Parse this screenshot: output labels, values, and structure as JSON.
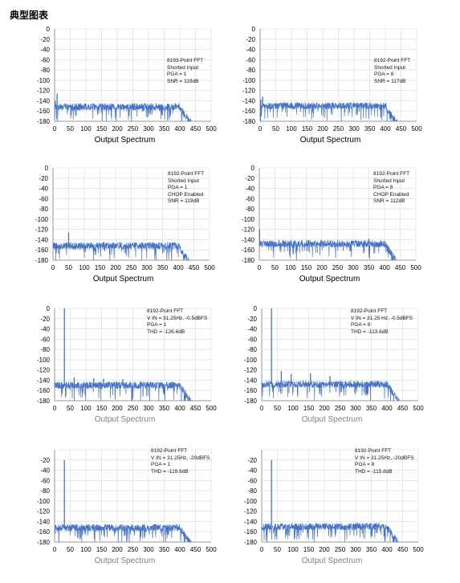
{
  "page": {
    "title": "典型图表"
  },
  "style": {
    "series_color": "#4472C4",
    "grid_color": "#d9d9d9",
    "axis_color": "#7f7f7f",
    "gray_label_color": "#7f7f7f"
  },
  "chart_data": [
    {
      "type": "line",
      "xlabel": "Output Spectrum",
      "xticks": [
        0,
        50,
        100,
        150,
        200,
        250,
        300,
        350,
        400,
        450,
        500
      ],
      "yticks": [
        0,
        -20,
        -40,
        -60,
        -80,
        -100,
        -120,
        -140,
        -160,
        -180
      ],
      "xlim": [
        0,
        500
      ],
      "ylim": [
        -180,
        0
      ],
      "annotations": [
        "8193-Point FFT",
        "Shorted Input",
        "PGA = 1",
        "SNR = 119dB"
      ],
      "series": [
        {
          "noise_floor": -152,
          "rolloff_start": 400,
          "x_end": 450,
          "peaks": [
            {
              "x": 2,
              "y": -140
            },
            {
              "x": 8,
              "y": -126
            }
          ]
        }
      ]
    },
    {
      "type": "line",
      "xlabel": "Output Spectrum",
      "xticks": [
        0,
        50,
        100,
        150,
        200,
        250,
        300,
        350,
        400,
        450,
        500
      ],
      "yticks": [
        0,
        -20,
        -40,
        -60,
        -80,
        -100,
        -120,
        -140,
        -160,
        -180
      ],
      "xlim": [
        0,
        500
      ],
      "ylim": [
        -180,
        0
      ],
      "annotations": [
        "8192-Point FFT",
        "Shorted Input",
        "PGA = 8",
        "SNR = 117dB"
      ],
      "series": [
        {
          "noise_floor": -150,
          "rolloff_start": 400,
          "x_end": 450,
          "peaks": [
            {
              "x": 2,
              "y": -138
            },
            {
              "x": 8,
              "y": -132
            }
          ]
        }
      ]
    },
    {
      "type": "line",
      "xlabel": "Output Spectrum",
      "xticks": [
        0,
        50,
        100,
        150,
        200,
        250,
        300,
        350,
        400,
        450,
        500
      ],
      "yticks": [
        0,
        -20,
        -40,
        -60,
        -80,
        -100,
        -120,
        -140,
        -160,
        -180
      ],
      "xlim": [
        0,
        500
      ],
      "ylim": [
        -180,
        0
      ],
      "annotations": [
        "8192-Point FFT",
        "Shorted Input",
        "PGA = 1",
        "CHOP Enabled",
        "SNR = 119dB"
      ],
      "series": [
        {
          "noise_floor": -152,
          "rolloff_start": 400,
          "x_end": 450,
          "peaks": [
            {
              "x": 50,
              "y": -126
            }
          ]
        }
      ]
    },
    {
      "type": "line",
      "xlabel": "Output Spectrum",
      "xticks": [
        0,
        50,
        100,
        150,
        200,
        250,
        300,
        350,
        400,
        450,
        500
      ],
      "yticks": [
        0,
        -20,
        -40,
        -60,
        -80,
        -100,
        -120,
        -140,
        -160,
        -180
      ],
      "xlim": [
        0,
        500
      ],
      "ylim": [
        -180,
        0
      ],
      "annotations": [
        "8192-Point FFT",
        "Shorted Input",
        "PGA = 8",
        "CHOP Enabled",
        "SNR = 112dB"
      ],
      "series": [
        {
          "noise_floor": -148,
          "rolloff_start": 400,
          "x_end": 450,
          "peaks": [
            {
              "x": 1,
              "y": -120
            },
            {
              "x": 350,
              "y": -138
            }
          ]
        }
      ]
    },
    {
      "type": "line",
      "xlabel": "Output Spectrum",
      "xticks": [
        0,
        50,
        100,
        150,
        200,
        250,
        300,
        350,
        400,
        450,
        500
      ],
      "yticks": [
        0,
        -20,
        -40,
        -60,
        -80,
        -100,
        -120,
        -140,
        -160,
        -180
      ],
      "xlim": [
        0,
        500
      ],
      "ylim": [
        -180,
        0
      ],
      "annotations": [
        "8192-Point FFT",
        "V IN = 31.25Hz, -0.5dBFS",
        "PGA = 1",
        "THD = -126.6dB"
      ],
      "series": [
        {
          "noise_floor": -150,
          "rolloff_start": 400,
          "x_end": 450,
          "peaks": [
            {
              "x": 31.25,
              "y": 0
            },
            {
              "x": 62.5,
              "y": -135
            },
            {
              "x": 125,
              "y": -136
            },
            {
              "x": 156,
              "y": -137
            },
            {
              "x": 218,
              "y": -138
            }
          ]
        }
      ]
    },
    {
      "type": "line",
      "xlabel": "Output Spectrum",
      "xticks": [
        0,
        50,
        100,
        150,
        200,
        250,
        300,
        350,
        400,
        450,
        500
      ],
      "yticks": [
        0,
        -20,
        -40,
        -60,
        -80,
        -100,
        -120,
        -140,
        -160,
        -180
      ],
      "xlim": [
        0,
        500
      ],
      "ylim": [
        -180,
        0
      ],
      "annotations": [
        "8192-Point FFT",
        "V IN = 31.25 Hz, -0.5dBFS",
        "PGA = 8",
        "THD = -113.6dB"
      ],
      "series": [
        {
          "noise_floor": -148,
          "rolloff_start": 400,
          "x_end": 450,
          "peaks": [
            {
              "x": 31.25,
              "y": 0
            },
            {
              "x": 62.5,
              "y": -122
            },
            {
              "x": 94,
              "y": -128
            },
            {
              "x": 156,
              "y": -127
            },
            {
              "x": 218,
              "y": -132
            }
          ]
        }
      ]
    },
    {
      "type": "line",
      "xlabel": "Output Spectrum",
      "xticks": [
        0,
        50,
        100,
        150,
        200,
        250,
        300,
        350,
        400,
        450,
        500
      ],
      "yticks": [
        -20,
        -40,
        -60,
        -80,
        -100,
        -120,
        -140,
        -160,
        -180
      ],
      "xlim": [
        0,
        500
      ],
      "ylim": [
        -180,
        0
      ],
      "annotations": [
        "8192-Point FFT",
        "V IN = 31.25Hz, -20dBFS",
        "PGA = 1",
        "THD = -119.6dB"
      ],
      "series": [
        {
          "noise_floor": -152,
          "rolloff_start": 400,
          "x_end": 450,
          "peaks": [
            {
              "x": 31.25,
              "y": -20
            }
          ]
        }
      ]
    },
    {
      "type": "line",
      "xlabel": "Output Spectrum",
      "xticks": [
        0,
        50,
        100,
        150,
        200,
        250,
        300,
        350,
        400,
        450,
        500
      ],
      "yticks": [
        -20,
        -40,
        -60,
        -80,
        -100,
        -120,
        -140,
        -160,
        -180
      ],
      "xlim": [
        0,
        500
      ],
      "ylim": [
        -180,
        0
      ],
      "annotations": [
        "8192-Point FFT",
        "V IN = 31.25Hz, -20dBFS",
        "PGA = 8",
        "THD = -115.8dB"
      ],
      "series": [
        {
          "noise_floor": -150,
          "rolloff_start": 400,
          "x_end": 450,
          "peaks": [
            {
              "x": 31.25,
              "y": -20
            }
          ]
        }
      ]
    }
  ]
}
